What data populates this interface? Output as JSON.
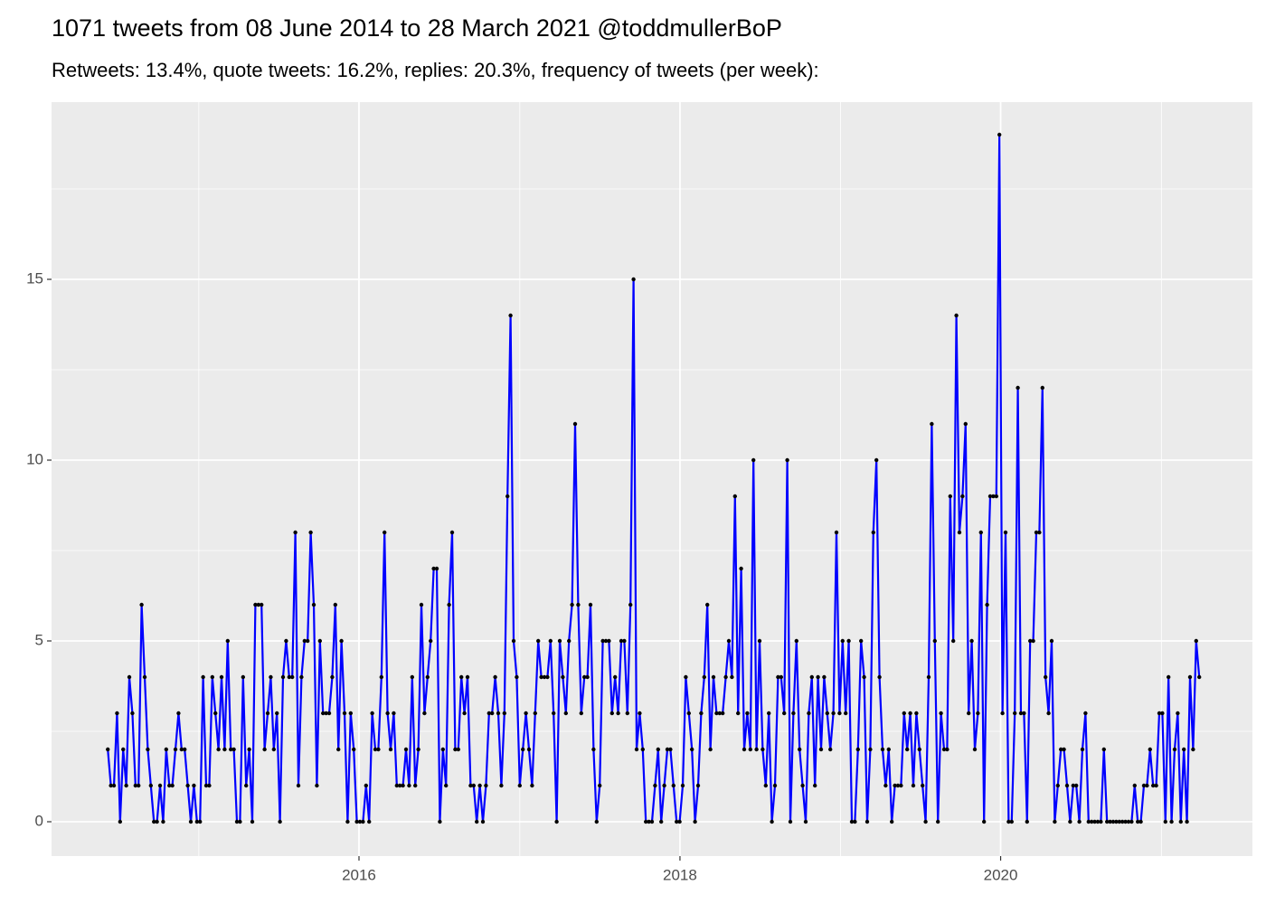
{
  "chart_data": {
    "type": "line",
    "title": "1071 tweets from 08 June 2014 to 28 March 2021 @toddmullerBoP",
    "subtitle": "Retweets: 13.4%, quote tweets: 16.2%, replies: 20.3%, frequency of tweets (per week):",
    "x": [
      0,
      1,
      2,
      3,
      4,
      5,
      6,
      7,
      8,
      9,
      10,
      11,
      12,
      13,
      14,
      15,
      16,
      17,
      18,
      19,
      20,
      21,
      22,
      23,
      24,
      25,
      26,
      27,
      28,
      29,
      30,
      31,
      32,
      33,
      34,
      35,
      36,
      37,
      38,
      39,
      40,
      41,
      42,
      43,
      44,
      45,
      46,
      47,
      48,
      49,
      50,
      51,
      52,
      53,
      54,
      55,
      56,
      57,
      58,
      59,
      60,
      61,
      62,
      63,
      64,
      65,
      66,
      67,
      68,
      69,
      70,
      71,
      72,
      73,
      74,
      75,
      76,
      77,
      78,
      79,
      80,
      81,
      82,
      83,
      84,
      85,
      86,
      87,
      88,
      89,
      90,
      91,
      92,
      93,
      94,
      95,
      96,
      97,
      98,
      99,
      100,
      101,
      102,
      103,
      104,
      105,
      106,
      107,
      108,
      109,
      110,
      111,
      112,
      113,
      114,
      115,
      116,
      117,
      118,
      119,
      120,
      121,
      122,
      123,
      124,
      125,
      126,
      127,
      128,
      129,
      130,
      131,
      132,
      133,
      134,
      135,
      136,
      137,
      138,
      139,
      140,
      141,
      142,
      143,
      144,
      145,
      146,
      147,
      148,
      149,
      150,
      151,
      152,
      153,
      154,
      155,
      156,
      157,
      158,
      159,
      160,
      161,
      162,
      163,
      164,
      165,
      166,
      167,
      168,
      169,
      170,
      171,
      172,
      173,
      174,
      175,
      176,
      177,
      178,
      179,
      180,
      181,
      182,
      183,
      184,
      185,
      186,
      187,
      188,
      189,
      190,
      191,
      192,
      193,
      194,
      195,
      196,
      197,
      198,
      199,
      200,
      201,
      202,
      203,
      204,
      205,
      206,
      207,
      208,
      209,
      210,
      211,
      212,
      213,
      214,
      215,
      216,
      217,
      218,
      219,
      220,
      221,
      222,
      223,
      224,
      225,
      226,
      227,
      228,
      229,
      230,
      231,
      232,
      233,
      234,
      235,
      236,
      237,
      238,
      239,
      240,
      241,
      242,
      243,
      244,
      245,
      246,
      247,
      248,
      249,
      250,
      251,
      252,
      253,
      254,
      255,
      256,
      257,
      258,
      259,
      260,
      261,
      262,
      263,
      264,
      265,
      266,
      267,
      268,
      269,
      270,
      271,
      272,
      273,
      274,
      275,
      276,
      277,
      278,
      279,
      280,
      281,
      282,
      283,
      284,
      285,
      286,
      287,
      288,
      289,
      290,
      291,
      292,
      293,
      294,
      295,
      296,
      297,
      298,
      299,
      300,
      301,
      302,
      303,
      304,
      305,
      306,
      307,
      308,
      309,
      310,
      311,
      312,
      313,
      314,
      315,
      316,
      317,
      318,
      319,
      320,
      321,
      322,
      323,
      324,
      325,
      326,
      327,
      328,
      329,
      330,
      331,
      332,
      333,
      334,
      335,
      336,
      337,
      338,
      339,
      340,
      341,
      342,
      343,
      344,
      345,
      346,
      347,
      348,
      349,
      350,
      351,
      352,
      353,
      354,
      355
    ],
    "series": [
      {
        "color": "#0000ff",
        "point_color": "#000000",
        "values": [
          2,
          1,
          1,
          3,
          0,
          2,
          1,
          4,
          3,
          1,
          1,
          6,
          4,
          2,
          1,
          0,
          0,
          1,
          0,
          2,
          1,
          1,
          2,
          3,
          2,
          2,
          1,
          0,
          1,
          0,
          0,
          4,
          1,
          1,
          4,
          3,
          2,
          4,
          2,
          5,
          2,
          2,
          0,
          0,
          4,
          1,
          2,
          0,
          6,
          6,
          6,
          2,
          3,
          4,
          2,
          3,
          0,
          4,
          5,
          4,
          4,
          8,
          1,
          4,
          5,
          5,
          8,
          6,
          1,
          5,
          3,
          3,
          3,
          4,
          6,
          2,
          5,
          3,
          0,
          3,
          2,
          0,
          0,
          0,
          1,
          0,
          3,
          2,
          2,
          4,
          8,
          3,
          2,
          3,
          1,
          1,
          1,
          2,
          1,
          4,
          1,
          2,
          6,
          3,
          4,
          5,
          7,
          7,
          0,
          2,
          1,
          6,
          8,
          2,
          2,
          4,
          3,
          4,
          1,
          1,
          0,
          1,
          0,
          1,
          3,
          3,
          4,
          3,
          1,
          3,
          9,
          14,
          5,
          4,
          1,
          2,
          3,
          2,
          1,
          3,
          5,
          4,
          4,
          4,
          5,
          3,
          0,
          5,
          4,
          3,
          5,
          6,
          11,
          6,
          3,
          4,
          4,
          6,
          2,
          0,
          1,
          5,
          5,
          5,
          3,
          4,
          3,
          5,
          5,
          3,
          6,
          15,
          2,
          3,
          2,
          0,
          0,
          0,
          1,
          2,
          0,
          1,
          2,
          2,
          1,
          0,
          0,
          1,
          4,
          3,
          2,
          0,
          1,
          3,
          4,
          6,
          2,
          4,
          3,
          3,
          3,
          4,
          5,
          4,
          9,
          3,
          7,
          2,
          3,
          2,
          10,
          2,
          5,
          2,
          1,
          3,
          0,
          1,
          4,
          4,
          3,
          10,
          0,
          3,
          5,
          2,
          1,
          0,
          3,
          4,
          1,
          4,
          2,
          4,
          3,
          2,
          3,
          8,
          3,
          5,
          3,
          5,
          0,
          0,
          2,
          5,
          4,
          0,
          2,
          8,
          10,
          4,
          2,
          1,
          2,
          0,
          1,
          1,
          1,
          3,
          2,
          3,
          1,
          3,
          2,
          1,
          0,
          4,
          11,
          5,
          0,
          3,
          2,
          2,
          9,
          5,
          14,
          8,
          9,
          11,
          3,
          5,
          2,
          3,
          8,
          0,
          6,
          9,
          9,
          9,
          19,
          3,
          8,
          0,
          0,
          3,
          12,
          3,
          3,
          0,
          5,
          5,
          8,
          8,
          12,
          4,
          3,
          5,
          0,
          1,
          2,
          2,
          1,
          0,
          1,
          1,
          0,
          2,
          3,
          0,
          0,
          0,
          0,
          0,
          2,
          0,
          0,
          0,
          0,
          0,
          0,
          0,
          0,
          0,
          1,
          0,
          0,
          1,
          1,
          2,
          1,
          1,
          3,
          3,
          0,
          4,
          0,
          2,
          3,
          0,
          2,
          0,
          4,
          2,
          5,
          4
        ]
      }
    ],
    "xlim": [
      -18.3,
      372.3
    ],
    "xticks": [
      {
        "value": 81.7,
        "label": "2016"
      },
      {
        "value": 186.1,
        "label": "2018"
      },
      {
        "value": 290.4,
        "label": "2020"
      }
    ],
    "x_minor_ticks": [
      29.6,
      134.0,
      238.3,
      342.7
    ],
    "ylim": [
      -0.95,
      19.9
    ],
    "yticks": [
      0,
      5,
      10,
      15
    ],
    "y_minor_ticks": [
      2.5,
      7.5,
      12.5,
      17.5
    ],
    "grid": true,
    "panel_color": "#ebebeb"
  }
}
